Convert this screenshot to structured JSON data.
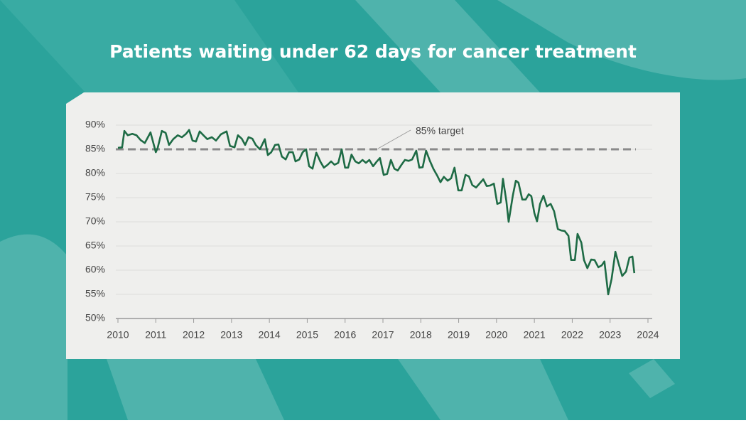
{
  "chart_data": {
    "type": "line",
    "title": "Patients waiting under 62 days for cancer treatment",
    "annotation": "85% target",
    "target": 85,
    "xlim": [
      2010,
      2024
    ],
    "xticks": [
      2010,
      2011,
      2012,
      2013,
      2014,
      2015,
      2016,
      2017,
      2018,
      2019,
      2020,
      2021,
      2022,
      2023,
      2024
    ],
    "ylim": [
      50,
      90
    ],
    "yticks": [
      {
        "value": 50,
        "label": "50%"
      },
      {
        "value": 55,
        "label": "55%"
      },
      {
        "value": 60,
        "label": "60%"
      },
      {
        "value": 65,
        "label": "65%"
      },
      {
        "value": 70,
        "label": "70%"
      },
      {
        "value": 75,
        "label": "75%"
      },
      {
        "value": 80,
        "label": "80%"
      },
      {
        "value": 85,
        "label": "85%"
      },
      {
        "value": 90,
        "label": "90%"
      }
    ],
    "grid": true,
    "color": "#1e6b45",
    "target_color": "#8a8a8a",
    "x": [
      2010.0,
      2010.11,
      2010.17,
      2010.26,
      2010.38,
      2010.49,
      2010.6,
      2010.71,
      2010.86,
      2011.0,
      2011.05,
      2011.16,
      2011.26,
      2011.35,
      2011.46,
      2011.58,
      2011.69,
      2011.8,
      2011.88,
      2011.97,
      2012.06,
      2012.16,
      2012.27,
      2012.36,
      2012.48,
      2012.59,
      2012.72,
      2012.87,
      2012.96,
      2013.08,
      2013.17,
      2013.27,
      2013.36,
      2013.45,
      2013.55,
      2013.64,
      2013.75,
      2013.88,
      2013.96,
      2014.05,
      2014.15,
      2014.24,
      2014.33,
      2014.43,
      2014.52,
      2014.62,
      2014.69,
      2014.79,
      2014.88,
      2014.97,
      2015.05,
      2015.14,
      2015.24,
      2015.35,
      2015.44,
      2015.54,
      2015.63,
      2015.72,
      2015.82,
      2015.91,
      2016.0,
      2016.08,
      2016.17,
      2016.27,
      2016.36,
      2016.46,
      2016.55,
      2016.64,
      2016.74,
      2016.83,
      2016.92,
      2017.02,
      2017.11,
      2017.21,
      2017.3,
      2017.39,
      2017.49,
      2017.58,
      2017.68,
      2017.77,
      2017.88,
      2017.96,
      2018.05,
      2018.14,
      2018.24,
      2018.33,
      2018.43,
      2018.52,
      2018.61,
      2018.71,
      2018.8,
      2018.89,
      2018.99,
      2019.08,
      2019.18,
      2019.27,
      2019.36,
      2019.46,
      2019.55,
      2019.65,
      2019.74,
      2019.83,
      2019.93,
      2020.02,
      2020.11,
      2020.17,
      2020.26,
      2020.32,
      2020.43,
      2020.51,
      2020.58,
      2020.68,
      2020.77,
      2020.85,
      2020.92,
      2021.0,
      2021.07,
      2021.15,
      2021.24,
      2021.33,
      2021.43,
      2021.52,
      2021.62,
      2021.71,
      2021.8,
      2021.9,
      2021.97,
      2022.07,
      2022.14,
      2022.24,
      2022.31,
      2022.4,
      2022.5,
      2022.59,
      2022.69,
      2022.78,
      2022.85,
      2022.95,
      2023.04,
      2023.14,
      2023.23,
      2023.32,
      2023.42,
      2023.51,
      2023.59,
      2023.64
    ],
    "values": [
      85.3,
      85.4,
      88.8,
      87.9,
      88.2,
      87.9,
      86.9,
      86.3,
      88.5,
      84.4,
      85.3,
      88.8,
      88.4,
      85.9,
      87.1,
      87.9,
      87.5,
      88.2,
      89.0,
      86.8,
      86.6,
      88.7,
      87.8,
      87.1,
      87.5,
      86.8,
      88.1,
      88.7,
      85.7,
      85.4,
      87.9,
      87.2,
      85.9,
      87.5,
      87.2,
      85.9,
      85.0,
      87.1,
      83.8,
      84.4,
      85.9,
      86.0,
      83.5,
      82.9,
      84.4,
      84.4,
      82.5,
      82.9,
      84.4,
      85.0,
      81.5,
      81.0,
      84.3,
      82.4,
      81.2,
      81.8,
      82.5,
      81.8,
      82.2,
      85.0,
      81.2,
      81.2,
      83.9,
      82.5,
      82.1,
      82.8,
      82.2,
      82.8,
      81.5,
      82.4,
      83.2,
      79.7,
      79.9,
      82.8,
      81.0,
      80.6,
      81.8,
      82.8,
      82.6,
      82.9,
      84.7,
      81.2,
      81.3,
      84.7,
      82.6,
      81.0,
      79.6,
      78.2,
      79.3,
      78.5,
      79.0,
      81.2,
      76.5,
      76.5,
      79.7,
      79.4,
      77.6,
      77.1,
      77.9,
      78.8,
      77.4,
      77.5,
      77.9,
      73.7,
      74.0,
      78.9,
      74.3,
      70.0,
      75.4,
      78.5,
      78.1,
      74.6,
      74.6,
      75.7,
      75.3,
      71.8,
      70.1,
      73.7,
      75.4,
      73.2,
      73.7,
      72.2,
      68.5,
      68.2,
      68.1,
      67.1,
      62.1,
      62.1,
      67.5,
      65.7,
      62.1,
      60.4,
      62.2,
      62.1,
      60.6,
      61.0,
      61.8,
      55.0,
      58.2,
      63.8,
      61.2,
      58.8,
      59.7,
      62.6,
      62.8,
      59.4
    ]
  }
}
